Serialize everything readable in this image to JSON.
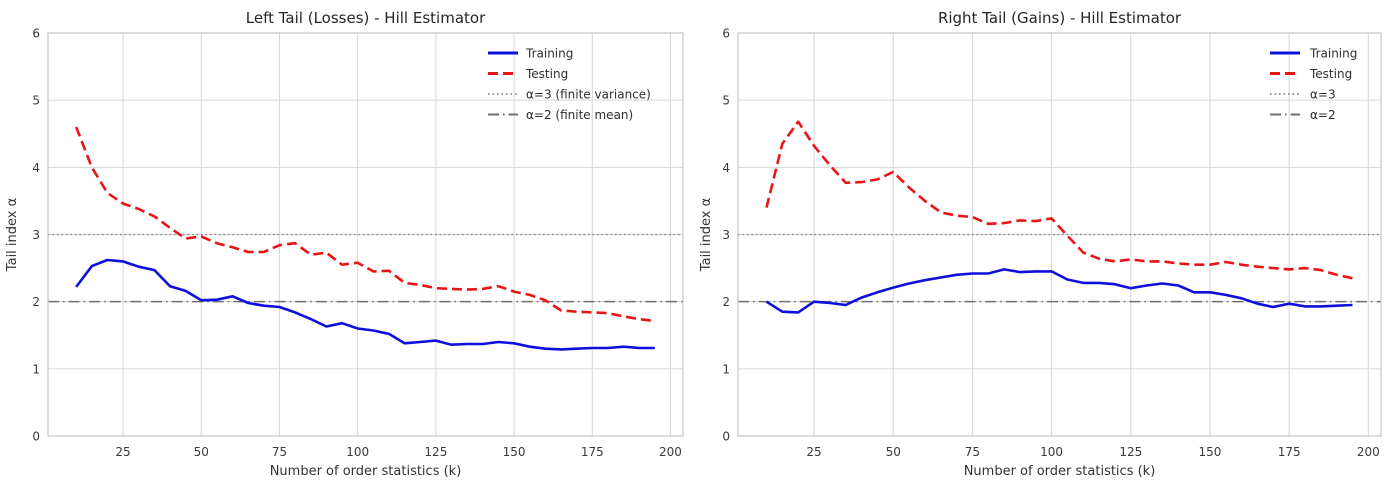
{
  "colors": {
    "background": "#ffffff",
    "grid": "#d6d6d6",
    "spine": "#c4c4c4",
    "training": "#0f0fdc",
    "testing": "#ea1414",
    "ref_dotted": "#8a8a8a",
    "ref_dashdot": "#6f6f6f",
    "text": "#333333"
  },
  "chart_data": [
    {
      "type": "line",
      "title": "Left Tail (Losses) - Hill Estimator",
      "xlabel": "Number of order statistics (k)",
      "ylabel": "Tail index α",
      "xlim": [
        1,
        204
      ],
      "ylim": [
        0,
        6
      ],
      "xticks": [
        25,
        50,
        75,
        100,
        125,
        150,
        175,
        200
      ],
      "yticks": [
        0,
        1,
        2,
        3,
        4,
        5,
        6
      ],
      "grid": true,
      "legend_position": "upper right",
      "x": [
        10,
        15,
        20,
        25,
        30,
        35,
        40,
        45,
        50,
        55,
        60,
        65,
        70,
        75,
        80,
        85,
        90,
        95,
        100,
        105,
        110,
        115,
        120,
        125,
        130,
        135,
        140,
        145,
        150,
        155,
        160,
        165,
        170,
        175,
        180,
        185,
        190,
        195
      ],
      "series": [
        {
          "name": "Training",
          "style": "solid",
          "color": "#0f0fdc",
          "values": [
            2.22,
            2.53,
            2.62,
            2.6,
            2.52,
            2.47,
            2.23,
            2.16,
            2.02,
            2.03,
            2.08,
            1.98,
            1.94,
            1.92,
            1.84,
            1.74,
            1.63,
            1.68,
            1.6,
            1.57,
            1.52,
            1.38,
            1.4,
            1.42,
            1.36,
            1.37,
            1.37,
            1.4,
            1.38,
            1.33,
            1.3,
            1.29,
            1.3,
            1.31,
            1.31,
            1.33,
            1.31,
            1.31
          ]
        },
        {
          "name": "Testing",
          "style": "dashed",
          "color": "#ea1414",
          "values": [
            4.6,
            4.0,
            3.62,
            3.46,
            3.38,
            3.27,
            3.1,
            2.94,
            2.97,
            2.87,
            2.81,
            2.74,
            2.74,
            2.84,
            2.87,
            2.7,
            2.73,
            2.55,
            2.58,
            2.45,
            2.46,
            2.28,
            2.25,
            2.2,
            2.19,
            2.18,
            2.19,
            2.23,
            2.15,
            2.1,
            2.02,
            1.87,
            1.85,
            1.84,
            1.83,
            1.78,
            1.74,
            1.71
          ]
        }
      ],
      "reference_lines": [
        {
          "label": "α=3 (finite variance)",
          "y": 3,
          "style": "dotted",
          "color": "#8a8a8a"
        },
        {
          "label": "α=2 (finite mean)",
          "y": 2,
          "style": "dashdot",
          "color": "#6f6f6f"
        }
      ],
      "legend": [
        "Training",
        "Testing",
        "α=3 (finite variance)",
        "α=2 (finite mean)"
      ]
    },
    {
      "type": "line",
      "title": "Right Tail (Gains) - Hill Estimator",
      "xlabel": "Number of order statistics (k)",
      "ylabel": "Tail index α",
      "xlim": [
        1,
        204
      ],
      "ylim": [
        0,
        6
      ],
      "xticks": [
        25,
        50,
        75,
        100,
        125,
        150,
        175,
        200
      ],
      "yticks": [
        0,
        1,
        2,
        3,
        4,
        5,
        6
      ],
      "grid": true,
      "legend_position": "upper right",
      "x": [
        10,
        15,
        20,
        25,
        30,
        35,
        40,
        45,
        50,
        55,
        60,
        65,
        70,
        75,
        80,
        85,
        90,
        95,
        100,
        105,
        110,
        115,
        120,
        125,
        130,
        135,
        140,
        145,
        150,
        155,
        160,
        165,
        170,
        175,
        180,
        185,
        190,
        195
      ],
      "series": [
        {
          "name": "Training",
          "style": "solid",
          "color": "#0f0fdc",
          "values": [
            2.0,
            1.85,
            1.84,
            2.0,
            1.98,
            1.95,
            2.06,
            2.14,
            2.21,
            2.27,
            2.32,
            2.36,
            2.4,
            2.42,
            2.42,
            2.48,
            2.44,
            2.45,
            2.45,
            2.33,
            2.28,
            2.28,
            2.26,
            2.2,
            2.24,
            2.27,
            2.24,
            2.14,
            2.14,
            2.1,
            2.05,
            1.97,
            1.92,
            1.97,
            1.93,
            1.93,
            1.94,
            1.95
          ]
        },
        {
          "name": "Testing",
          "style": "dashed",
          "color": "#ea1414",
          "values": [
            3.4,
            4.35,
            4.68,
            4.32,
            4.03,
            3.77,
            3.78,
            3.82,
            3.93,
            3.7,
            3.5,
            3.33,
            3.28,
            3.26,
            3.16,
            3.17,
            3.21,
            3.2,
            3.24,
            2.98,
            2.73,
            2.64,
            2.6,
            2.63,
            2.6,
            2.6,
            2.57,
            2.55,
            2.55,
            2.59,
            2.55,
            2.52,
            2.5,
            2.48,
            2.5,
            2.47,
            2.4,
            2.35
          ]
        }
      ],
      "reference_lines": [
        {
          "label": "α=3",
          "y": 3,
          "style": "dotted",
          "color": "#8a8a8a"
        },
        {
          "label": "α=2",
          "y": 2,
          "style": "dashdot",
          "color": "#6f6f6f"
        }
      ],
      "legend": [
        "Training",
        "Testing",
        "α=3",
        "α=2"
      ]
    }
  ]
}
